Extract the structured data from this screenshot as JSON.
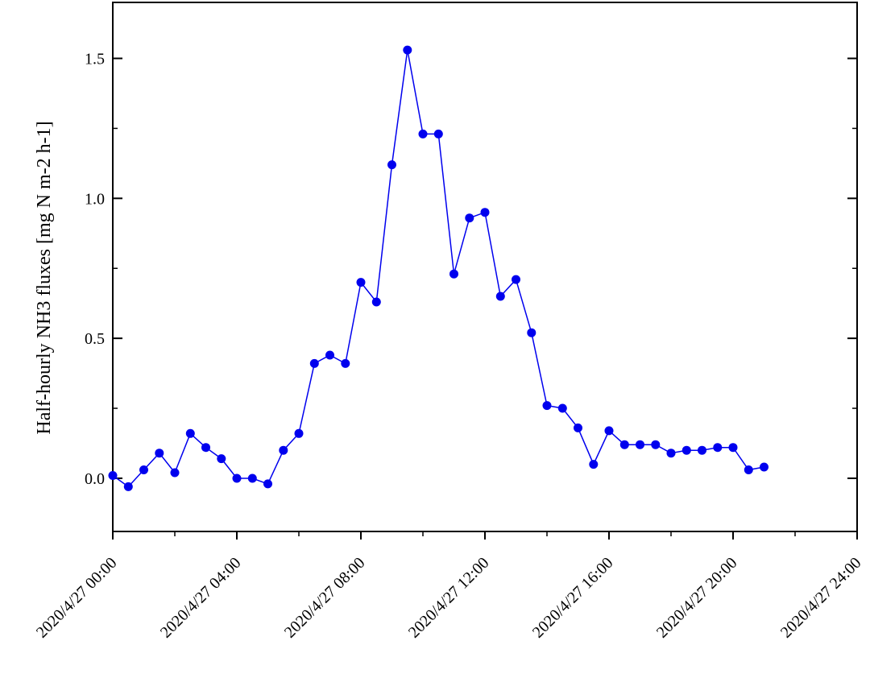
{
  "chart_data": {
    "type": "line",
    "title": "",
    "xlabel": "",
    "ylabel": "Half-hourly NH3 fluxes [mg N m-2 h-1]",
    "x_tick_labels": [
      "2020/4/27 00:00",
      "2020/4/27 04:00",
      "2020/4/27 08:00",
      "2020/4/27 12:00",
      "2020/4/27 16:00",
      "2020/4/27 20:00",
      "2020/4/27 24:00"
    ],
    "y_tick_labels": [
      "0.0",
      "0.5",
      "1.0",
      "1.5"
    ],
    "xlim": [
      "2020/4/27 00:00",
      "2020/4/27 24:00"
    ],
    "ylim": [
      -0.19,
      1.7
    ],
    "grid": false,
    "series": [
      {
        "color": "#0000ee",
        "marker": "circle",
        "points": [
          {
            "x": "2020/4/27 00:00",
            "y": 0.01
          },
          {
            "x": "2020/4/27 00:30",
            "y": -0.03
          },
          {
            "x": "2020/4/27 01:00",
            "y": 0.03
          },
          {
            "x": "2020/4/27 01:30",
            "y": 0.09
          },
          {
            "x": "2020/4/27 02:00",
            "y": 0.02
          },
          {
            "x": "2020/4/27 02:30",
            "y": 0.16
          },
          {
            "x": "2020/4/27 03:00",
            "y": 0.11
          },
          {
            "x": "2020/4/27 03:30",
            "y": 0.07
          },
          {
            "x": "2020/4/27 04:00",
            "y": 0.0
          },
          {
            "x": "2020/4/27 04:30",
            "y": 0.0
          },
          {
            "x": "2020/4/27 05:00",
            "y": -0.02
          },
          {
            "x": "2020/4/27 05:30",
            "y": 0.1
          },
          {
            "x": "2020/4/27 06:00",
            "y": 0.16
          },
          {
            "x": "2020/4/27 06:30",
            "y": 0.41
          },
          {
            "x": "2020/4/27 07:00",
            "y": 0.44
          },
          {
            "x": "2020/4/27 07:30",
            "y": 0.41
          },
          {
            "x": "2020/4/27 08:00",
            "y": 0.7
          },
          {
            "x": "2020/4/27 08:30",
            "y": 0.63
          },
          {
            "x": "2020/4/27 09:00",
            "y": 1.12
          },
          {
            "x": "2020/4/27 09:30",
            "y": 1.53
          },
          {
            "x": "2020/4/27 10:00",
            "y": 1.23
          },
          {
            "x": "2020/4/27 10:30",
            "y": 1.23
          },
          {
            "x": "2020/4/27 11:00",
            "y": 0.73
          },
          {
            "x": "2020/4/27 11:30",
            "y": 0.93
          },
          {
            "x": "2020/4/27 12:00",
            "y": 0.95
          },
          {
            "x": "2020/4/27 12:30",
            "y": 0.65
          },
          {
            "x": "2020/4/27 13:00",
            "y": 0.71
          },
          {
            "x": "2020/4/27 13:30",
            "y": 0.52
          },
          {
            "x": "2020/4/27 14:00",
            "y": 0.26
          },
          {
            "x": "2020/4/27 14:30",
            "y": 0.25
          },
          {
            "x": "2020/4/27 15:00",
            "y": 0.18
          },
          {
            "x": "2020/4/27 15:30",
            "y": 0.05
          },
          {
            "x": "2020/4/27 16:00",
            "y": 0.17
          },
          {
            "x": "2020/4/27 16:30",
            "y": 0.12
          },
          {
            "x": "2020/4/27 17:00",
            "y": 0.12
          },
          {
            "x": "2020/4/27 17:30",
            "y": 0.12
          },
          {
            "x": "2020/4/27 18:00",
            "y": 0.09
          },
          {
            "x": "2020/4/27 18:30",
            "y": 0.1
          },
          {
            "x": "2020/4/27 19:00",
            "y": 0.1
          },
          {
            "x": "2020/4/27 19:30",
            "y": 0.11
          },
          {
            "x": "2020/4/27 20:00",
            "y": 0.11
          },
          {
            "x": "2020/4/27 20:30",
            "y": 0.03
          },
          {
            "x": "2020/4/27 21:00",
            "y": 0.04
          }
        ]
      }
    ]
  }
}
